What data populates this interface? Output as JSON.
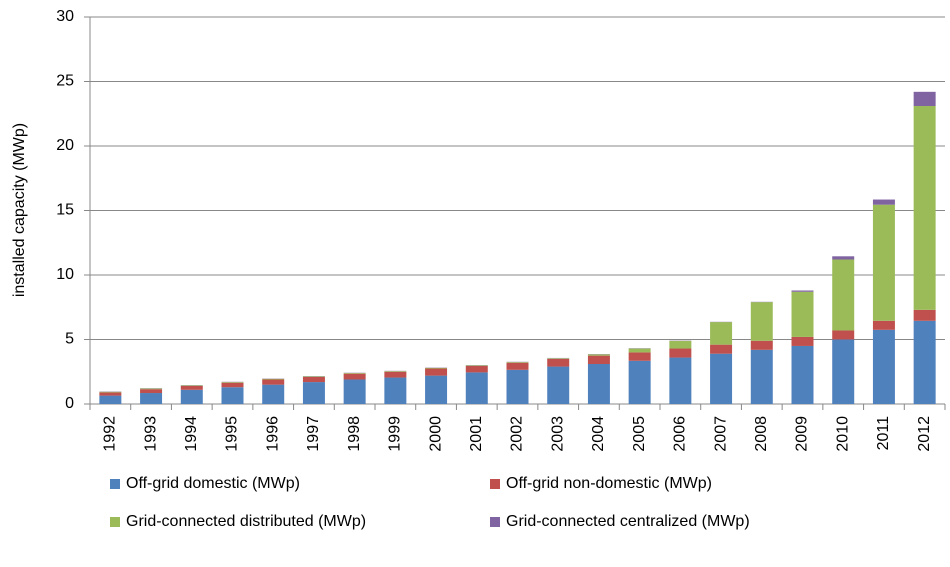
{
  "chart_data": {
    "type": "stacked_bar",
    "y_label": "installed capacity (MWp)",
    "categories": [
      "1992",
      "1993",
      "1994",
      "1995",
      "1996",
      "1997",
      "1998",
      "1999",
      "2000",
      "2001",
      "2002",
      "2003",
      "2004",
      "2005",
      "2006",
      "2007",
      "2008",
      "2009",
      "2010",
      "2011",
      "2012"
    ],
    "series": [
      {
        "name": "Off-grid domestic (MWp)",
        "color": "#4f81bd",
        "values": [
          0.65,
          0.85,
          1.1,
          1.3,
          1.5,
          1.7,
          1.9,
          2.05,
          2.2,
          2.45,
          2.65,
          2.9,
          3.1,
          3.35,
          3.6,
          3.9,
          4.2,
          4.5,
          5.0,
          5.75,
          6.45
        ]
      },
      {
        "name": "Off-grid non-domestic (MWp)",
        "color": "#c0504d",
        "values": [
          0.25,
          0.3,
          0.3,
          0.35,
          0.4,
          0.4,
          0.45,
          0.45,
          0.55,
          0.5,
          0.55,
          0.6,
          0.65,
          0.65,
          0.7,
          0.7,
          0.7,
          0.7,
          0.7,
          0.7,
          0.85
        ]
      },
      {
        "name": "Grid-connected distributed (MWp)",
        "color": "#9bbb59",
        "values": [
          0.05,
          0.05,
          0.05,
          0.05,
          0.05,
          0.05,
          0.05,
          0.05,
          0.05,
          0.05,
          0.05,
          0.05,
          0.1,
          0.3,
          0.6,
          1.75,
          3.0,
          3.5,
          5.5,
          9.0,
          15.8
        ]
      },
      {
        "name": "Grid-connected centralized (MWp)",
        "color": "#8064a2",
        "values": [
          0.02,
          0.02,
          0.02,
          0.02,
          0.02,
          0.02,
          0.02,
          0.02,
          0.02,
          0.02,
          0.02,
          0.02,
          0.02,
          0.02,
          0.02,
          0.02,
          0.02,
          0.1,
          0.25,
          0.4,
          1.1
        ]
      }
    ],
    "ylim": [
      0,
      30
    ],
    "yticks": [
      0,
      5,
      10,
      15,
      20,
      25,
      30
    ],
    "grid": true,
    "legend": "bottom"
  }
}
